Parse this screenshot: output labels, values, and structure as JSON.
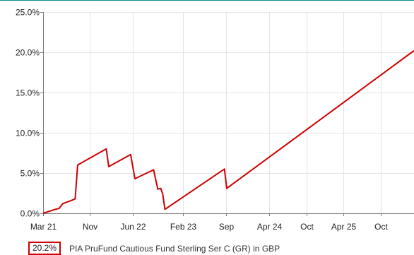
{
  "chart_data": {
    "type": "line",
    "title": "",
    "xlabel": "",
    "ylabel": "",
    "ylim": [
      0,
      25
    ],
    "y_ticks": [
      "25.0%",
      "20.0%",
      "15.0%",
      "10.0%",
      "5.0%",
      "0.0%"
    ],
    "y_tick_values": [
      25,
      20,
      15,
      10,
      5,
      0
    ],
    "x_ticks": [
      "Mar 21",
      "Nov",
      "Jun 22",
      "Feb 23",
      "Sep",
      "Apr 24",
      "Oct",
      "Apr 25",
      "Oct"
    ],
    "x_tick_dates": [
      "2021-03-15",
      "2021-11-01",
      "2022-06-01",
      "2023-02-01",
      "2023-09-01",
      "2024-04-01",
      "2024-10-01",
      "2025-04-01",
      "2025-10-01"
    ],
    "xlim": [
      "2021-03-15",
      "2026-03-15"
    ],
    "grid": true,
    "legend": "bottom-left",
    "series": [
      {
        "name": "PIA PruFund Cautious Fund Sterling Ser C (GR) in GBP",
        "color": "#cc0000",
        "final_label": "20.2%",
        "points": [
          [
            "2021-03-15",
            0.0
          ],
          [
            "2021-05-15",
            0.5
          ],
          [
            "2021-06-01",
            0.6
          ],
          [
            "2021-06-20",
            1.2
          ],
          [
            "2021-08-01",
            1.6
          ],
          [
            "2021-08-20",
            1.8
          ],
          [
            "2021-09-01",
            6.0
          ],
          [
            "2022-01-20",
            8.0
          ],
          [
            "2022-02-01",
            5.8
          ],
          [
            "2022-05-20",
            7.3
          ],
          [
            "2022-06-10",
            4.3
          ],
          [
            "2022-09-10",
            5.4
          ],
          [
            "2022-10-01",
            3.0
          ],
          [
            "2022-10-15",
            3.1
          ],
          [
            "2022-10-25",
            2.4
          ],
          [
            "2022-11-05",
            0.5
          ],
          [
            "2023-08-25",
            5.5
          ],
          [
            "2023-09-05",
            3.1
          ],
          [
            "2026-03-15",
            20.2
          ]
        ]
      }
    ]
  }
}
